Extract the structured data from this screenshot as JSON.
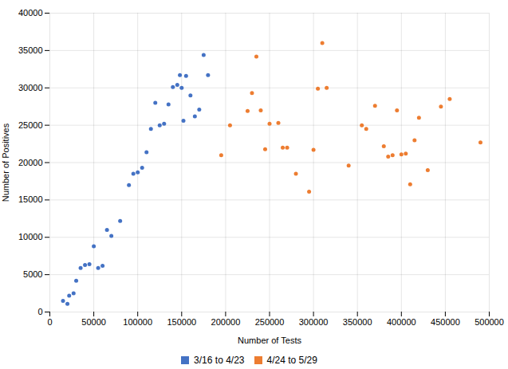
{
  "chart_data": {
    "type": "scatter",
    "xlabel": "Number of Tests",
    "ylabel": "Number of Positives",
    "xlim": [
      0,
      500000
    ],
    "ylim": [
      0,
      40000
    ],
    "xticks": [
      0,
      50000,
      100000,
      150000,
      200000,
      250000,
      300000,
      350000,
      400000,
      450000,
      500000
    ],
    "yticks": [
      0,
      5000,
      10000,
      15000,
      20000,
      25000,
      30000,
      35000,
      40000
    ],
    "grid": true,
    "legend": "bottom",
    "series": [
      {
        "name": "3/16 to 4/23",
        "color": "#4472C4",
        "x": [
          15000,
          20000,
          22000,
          27000,
          30000,
          35000,
          40000,
          45000,
          50000,
          55000,
          60000,
          65000,
          70000,
          80000,
          90000,
          95000,
          100000,
          105000,
          110000,
          115000,
          120000,
          125000,
          130000,
          135000,
          140000,
          145000,
          148000,
          150000,
          152000,
          155000,
          160000,
          165000,
          170000,
          175000,
          180000
        ],
        "values": [
          1500,
          1100,
          2200,
          2500,
          4200,
          5900,
          6300,
          6400,
          8800,
          5900,
          6200,
          11000,
          10200,
          12200,
          17000,
          18500,
          18700,
          19300,
          21400,
          24500,
          28000,
          25000,
          25200,
          27800,
          30100,
          30400,
          31700,
          30000,
          25600,
          31600,
          29000,
          26200,
          27100,
          34400,
          31700
        ]
      },
      {
        "name": "4/24 to 5/29",
        "color": "#ED7D31",
        "x": [
          195000,
          205000,
          225000,
          230000,
          235000,
          240000,
          245000,
          250000,
          260000,
          265000,
          270000,
          280000,
          295000,
          300000,
          305000,
          310000,
          315000,
          340000,
          355000,
          360000,
          370000,
          380000,
          385000,
          390000,
          395000,
          400000,
          405000,
          410000,
          415000,
          420000,
          430000,
          445000,
          455000,
          490000
        ],
        "values": [
          21000,
          25000,
          26900,
          29300,
          34200,
          27000,
          21800,
          25200,
          25300,
          22000,
          22000,
          18500,
          16100,
          21700,
          29900,
          36000,
          30000,
          19600,
          25000,
          24500,
          27600,
          22200,
          20800,
          21000,
          27000,
          21100,
          21200,
          17100,
          23000,
          26000,
          19000,
          27500,
          28500,
          22700
        ]
      }
    ]
  }
}
